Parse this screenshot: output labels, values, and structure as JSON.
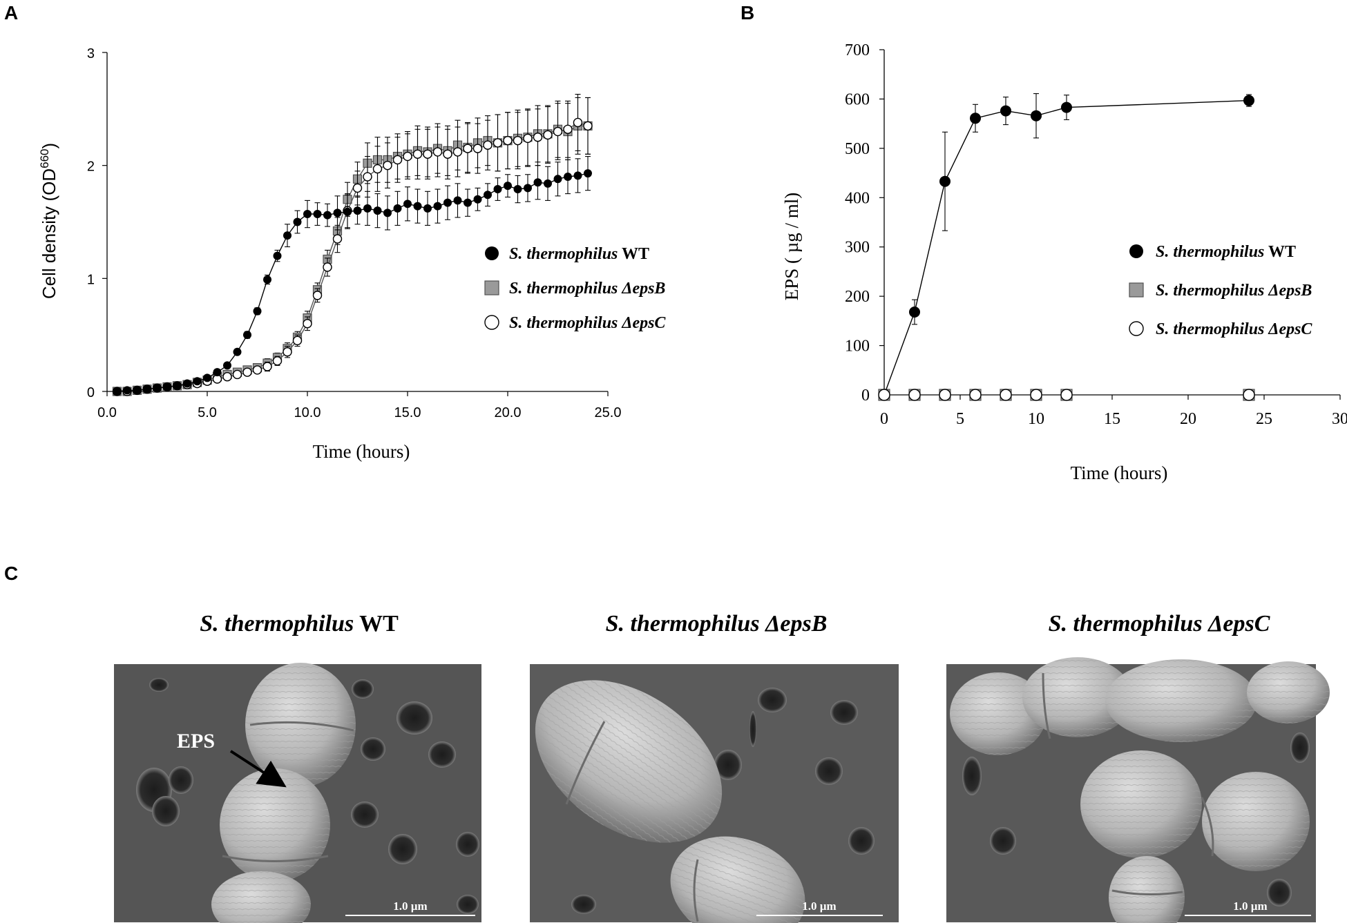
{
  "panels": {
    "a_letter": "A",
    "b_letter": "B",
    "c_letter": "C"
  },
  "chart_data": [
    {
      "type": "line",
      "panel": "A",
      "xlabel": "Time (hours)",
      "ylabel_main": "Cell density (OD",
      "ylabel_sup": "660",
      "ylabel_close": ")",
      "xlim": [
        0,
        25
      ],
      "ylim": [
        0,
        3
      ],
      "xticks": [
        "0.0",
        "5.0",
        "10.0",
        "15.0",
        "20.0",
        "25.0"
      ],
      "xtick_values": [
        0,
        5,
        10,
        15,
        20,
        25
      ],
      "yticks": [
        "0",
        "1",
        "2",
        "3"
      ],
      "ytick_values": [
        0,
        1,
        2,
        3
      ],
      "legend_position": "right",
      "series": [
        {
          "italic": "S. thermophilus",
          "suffix": " WT",
          "marker": "circle-filled",
          "color": "#000000",
          "x": [
            0.5,
            1,
            1.5,
            2,
            2.5,
            3,
            3.5,
            4,
            4.5,
            5,
            5.5,
            6,
            6.5,
            7,
            7.5,
            8,
            8.5,
            9,
            9.5,
            10,
            10.5,
            11,
            11.5,
            12,
            12.5,
            13,
            13.5,
            14,
            14.5,
            15,
            15.5,
            16,
            16.5,
            17,
            17.5,
            18,
            18.5,
            19,
            19.5,
            20,
            20.5,
            21,
            21.5,
            22,
            22.5,
            23,
            23.5,
            24
          ],
          "values": [
            0.0,
            0.01,
            0.01,
            0.02,
            0.03,
            0.04,
            0.05,
            0.07,
            0.09,
            0.12,
            0.17,
            0.23,
            0.35,
            0.5,
            0.71,
            0.99,
            1.2,
            1.38,
            1.5,
            1.57,
            1.57,
            1.56,
            1.58,
            1.59,
            1.6,
            1.62,
            1.6,
            1.58,
            1.62,
            1.66,
            1.64,
            1.62,
            1.64,
            1.67,
            1.69,
            1.67,
            1.7,
            1.74,
            1.79,
            1.82,
            1.79,
            1.8,
            1.85,
            1.84,
            1.88,
            1.9,
            1.91,
            1.93
          ],
          "err": [
            0,
            0,
            0,
            0,
            0,
            0,
            0,
            0,
            0,
            0,
            0,
            0.02,
            0.02,
            0.03,
            0.03,
            0.04,
            0.05,
            0.1,
            0.1,
            0.12,
            0.1,
            0.1,
            0.15,
            0.15,
            0.12,
            0.15,
            0.15,
            0.15,
            0.15,
            0.15,
            0.15,
            0.15,
            0.15,
            0.15,
            0.15,
            0.12,
            0.1,
            0.1,
            0.1,
            0.1,
            0.12,
            0.12,
            0.15,
            0.15,
            0.15,
            0.15,
            0.15,
            0.15
          ]
        },
        {
          "italic": "S. thermophilus ΔepsB",
          "suffix": "",
          "marker": "square-gray",
          "color": "#8a8a8a",
          "x": [
            0.5,
            1,
            1.5,
            2,
            2.5,
            3,
            3.5,
            4,
            4.5,
            5,
            5.5,
            6,
            6.5,
            7,
            7.5,
            8,
            8.5,
            9,
            9.5,
            10,
            10.5,
            11,
            11.5,
            12,
            12.5,
            13,
            13.5,
            14,
            14.5,
            15,
            15.5,
            16,
            16.5,
            17,
            17.5,
            18,
            18.5,
            19,
            19.5,
            20,
            20.5,
            21,
            21.5,
            22,
            22.5,
            23,
            23.5,
            24
          ],
          "values": [
            0.0,
            0.0,
            0.01,
            0.02,
            0.03,
            0.04,
            0.05,
            0.06,
            0.08,
            0.1,
            0.13,
            0.15,
            0.17,
            0.19,
            0.21,
            0.25,
            0.3,
            0.38,
            0.48,
            0.65,
            0.9,
            1.17,
            1.42,
            1.7,
            1.88,
            2.02,
            2.05,
            2.05,
            2.08,
            2.1,
            2.13,
            2.12,
            2.15,
            2.13,
            2.18,
            2.16,
            2.2,
            2.22,
            2.2,
            2.22,
            2.24,
            2.25,
            2.28,
            2.28,
            2.32,
            2.3,
            2.35,
            2.35
          ],
          "err": [
            0,
            0,
            0,
            0,
            0,
            0,
            0,
            0,
            0,
            0,
            0,
            0.02,
            0.02,
            0.03,
            0.03,
            0.04,
            0.04,
            0.05,
            0.05,
            0.06,
            0.06,
            0.08,
            0.12,
            0.15,
            0.15,
            0.18,
            0.2,
            0.2,
            0.2,
            0.2,
            0.22,
            0.22,
            0.22,
            0.22,
            0.22,
            0.22,
            0.22,
            0.22,
            0.25,
            0.25,
            0.25,
            0.25,
            0.25,
            0.25,
            0.25,
            0.25,
            0.25,
            0.25
          ]
        },
        {
          "italic": "S. thermophilus ΔepsC",
          "suffix": "",
          "marker": "circle-open",
          "color": "#000000",
          "x": [
            0.5,
            1,
            1.5,
            2,
            2.5,
            3,
            3.5,
            4,
            4.5,
            5,
            5.5,
            6,
            6.5,
            7,
            7.5,
            8,
            8.5,
            9,
            9.5,
            10,
            10.5,
            11,
            11.5,
            12,
            12.5,
            13,
            13.5,
            14,
            14.5,
            15,
            15.5,
            16,
            16.5,
            17,
            17.5,
            18,
            18.5,
            19,
            19.5,
            20,
            20.5,
            21,
            21.5,
            22,
            22.5,
            23,
            23.5,
            24
          ],
          "values": [
            0.0,
            0.0,
            0.01,
            0.02,
            0.03,
            0.04,
            0.05,
            0.06,
            0.07,
            0.09,
            0.11,
            0.13,
            0.15,
            0.17,
            0.19,
            0.22,
            0.27,
            0.35,
            0.45,
            0.6,
            0.85,
            1.1,
            1.35,
            1.6,
            1.8,
            1.9,
            1.97,
            2.0,
            2.05,
            2.08,
            2.1,
            2.1,
            2.12,
            2.1,
            2.12,
            2.15,
            2.15,
            2.18,
            2.2,
            2.22,
            2.22,
            2.24,
            2.25,
            2.27,
            2.3,
            2.32,
            2.38,
            2.35
          ],
          "err": [
            0,
            0,
            0,
            0,
            0,
            0,
            0,
            0,
            0,
            0,
            0,
            0.02,
            0.02,
            0.03,
            0.03,
            0.04,
            0.04,
            0.05,
            0.05,
            0.06,
            0.06,
            0.08,
            0.12,
            0.15,
            0.15,
            0.18,
            0.2,
            0.2,
            0.2,
            0.2,
            0.22,
            0.22,
            0.22,
            0.22,
            0.22,
            0.22,
            0.22,
            0.22,
            0.25,
            0.25,
            0.25,
            0.25,
            0.25,
            0.25,
            0.25,
            0.25,
            0.25,
            0.25
          ]
        }
      ]
    },
    {
      "type": "line",
      "panel": "B",
      "xlabel": "Time (hours)",
      "ylabel": "EPS ( µg / ml)",
      "xlim": [
        0,
        30
      ],
      "ylim": [
        0,
        700
      ],
      "xticks": [
        "0",
        "5",
        "10",
        "15",
        "20",
        "25",
        "30"
      ],
      "xtick_values": [
        0,
        5,
        10,
        15,
        20,
        25,
        30
      ],
      "yticks": [
        "0",
        "100",
        "200",
        "300",
        "400",
        "500",
        "600",
        "700"
      ],
      "ytick_values": [
        0,
        100,
        200,
        300,
        400,
        500,
        600,
        700
      ],
      "legend_position": "right",
      "series": [
        {
          "italic": "S. thermophilus",
          "suffix": " WT",
          "marker": "circle-filled",
          "color": "#000000",
          "x": [
            0,
            2,
            4,
            6,
            8,
            10,
            12,
            24
          ],
          "values": [
            0,
            168,
            433,
            561,
            576,
            566,
            583,
            597
          ],
          "err": [
            0,
            25,
            100,
            28,
            28,
            45,
            25,
            12
          ]
        },
        {
          "italic": "S. thermophilus ΔepsB",
          "suffix": "",
          "marker": "square-gray",
          "color": "#8a8a8a",
          "x": [
            0,
            2,
            4,
            6,
            8,
            10,
            12,
            24
          ],
          "values": [
            0,
            0,
            0,
            0,
            0,
            0,
            0,
            0
          ],
          "err": [
            0,
            0,
            0,
            0,
            0,
            0,
            0,
            0
          ]
        },
        {
          "italic": "S. thermophilus ΔepsC",
          "suffix": "",
          "marker": "circle-open",
          "color": "#000000",
          "x": [
            0,
            2,
            4,
            6,
            8,
            10,
            12,
            24
          ],
          "values": [
            0,
            0,
            0,
            0,
            0,
            0,
            0,
            0
          ],
          "err": [
            0,
            0,
            0,
            0,
            0,
            0,
            0,
            0
          ]
        }
      ]
    }
  ],
  "micrographs": [
    {
      "title_italic": "S. thermophilus",
      "title_suffix": " WT",
      "scale": "1.0 µm",
      "annotation": "EPS"
    },
    {
      "title_italic": "S. thermophilus ΔepsB",
      "title_suffix": "",
      "scale": "1.0 µm"
    },
    {
      "title_italic": "S. thermophilus ΔepsC",
      "title_suffix": "",
      "scale": "1.0 µm"
    }
  ]
}
